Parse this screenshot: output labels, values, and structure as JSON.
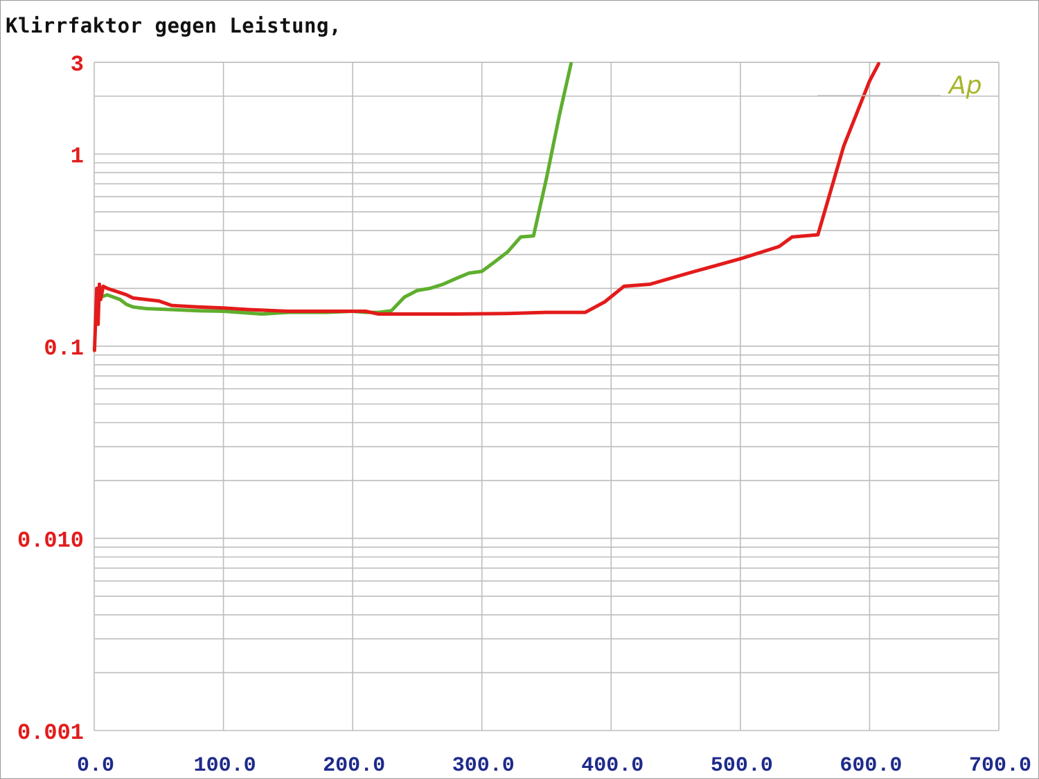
{
  "title": "Klirrfaktor gegen Leistung,",
  "logo_text": "Ap",
  "colors": {
    "grid": "#bdbdbd",
    "axis_x_labels": "#1e2a8a",
    "axis_y_labels": "#e31b1b",
    "series_red": "#e31b1b",
    "series_green": "#5fae2e",
    "logo": "#a7b52a"
  },
  "chart_data": {
    "type": "line",
    "title": "Klirrfaktor gegen Leistung,",
    "xlabel": "",
    "ylabel": "",
    "xlim": [
      0,
      700
    ],
    "ylim": [
      0.001,
      3
    ],
    "yscale": "log",
    "grid": true,
    "x_tick_labels": [
      "0.0",
      "100.0",
      "200.0",
      "300.0",
      "400.0",
      "500.0",
      "600.0",
      "700.0"
    ],
    "y_tick_labels": [
      {
        "value": 3,
        "text": "3"
      },
      {
        "value": 1,
        "text": "1"
      },
      {
        "value": 0.1,
        "text": "0.1"
      },
      {
        "value": 0.01,
        "text": "0.010"
      },
      {
        "value": 0.001,
        "text": "0.001"
      }
    ],
    "series": [
      {
        "color": "#e31b1b",
        "x": [
          0.2,
          2,
          3,
          4,
          5,
          7,
          10,
          15,
          20,
          25,
          30,
          40,
          50,
          60,
          80,
          100,
          120,
          150,
          180,
          210,
          220,
          250,
          280,
          320,
          350,
          380,
          395,
          410,
          430,
          460,
          500,
          530,
          540,
          560,
          580,
          600,
          607
        ],
        "y": [
          0.095,
          0.2,
          0.13,
          0.21,
          0.175,
          0.205,
          0.2,
          0.195,
          0.19,
          0.185,
          0.178,
          0.175,
          0.172,
          0.163,
          0.16,
          0.158,
          0.155,
          0.152,
          0.152,
          0.152,
          0.147,
          0.147,
          0.147,
          0.148,
          0.15,
          0.15,
          0.17,
          0.205,
          0.21,
          0.24,
          0.285,
          0.33,
          0.37,
          0.38,
          1.1,
          2.4,
          2.95
        ]
      },
      {
        "color": "#5fae2e",
        "x": [
          2,
          5,
          10,
          20,
          25,
          30,
          40,
          60,
          80,
          100,
          130,
          150,
          180,
          200,
          210,
          220,
          230,
          240,
          250,
          260,
          270,
          280,
          290,
          300,
          310,
          320,
          330,
          340,
          350,
          360,
          369
        ],
        "y": [
          0.2,
          0.18,
          0.185,
          0.175,
          0.165,
          0.16,
          0.157,
          0.155,
          0.153,
          0.152,
          0.147,
          0.15,
          0.15,
          0.152,
          0.15,
          0.15,
          0.153,
          0.18,
          0.195,
          0.2,
          0.21,
          0.225,
          0.24,
          0.245,
          0.275,
          0.31,
          0.37,
          0.375,
          0.75,
          1.6,
          2.95
        ]
      }
    ]
  }
}
